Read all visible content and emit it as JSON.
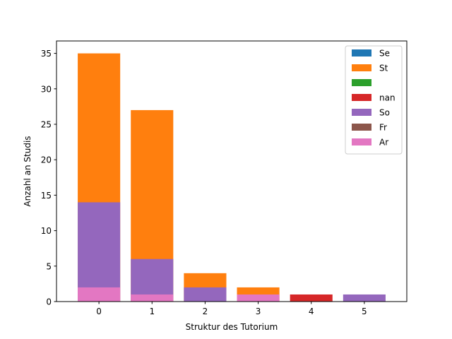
{
  "chart_data": {
    "type": "bar",
    "stacked": true,
    "categories": [
      "0",
      "1",
      "2",
      "3",
      "4",
      "5"
    ],
    "x": [
      0,
      1,
      2,
      3,
      4,
      5
    ],
    "xlabel": "Struktur des Tutorium",
    "ylabel": "Anzahl an Studis",
    "ylim": [
      0,
      36.75
    ],
    "yticks": [
      0,
      5,
      10,
      15,
      20,
      25,
      30,
      35
    ],
    "grid": false,
    "legend_position": "upper right",
    "series": [
      {
        "name": "Se",
        "color": "#1f77b4",
        "top": [
          0,
          0,
          0,
          0,
          0,
          0
        ]
      },
      {
        "name": "St",
        "color": "#ff7f0e",
        "top": [
          35,
          27,
          4,
          2,
          0,
          0
        ]
      },
      {
        "name": "",
        "color": "#2ca02c",
        "top": [
          0,
          0,
          0,
          0,
          0,
          0
        ]
      },
      {
        "name": "nan",
        "color": "#d62728",
        "top": [
          0,
          0,
          0,
          0,
          1,
          0
        ]
      },
      {
        "name": "So",
        "color": "#9467bd",
        "top": [
          14,
          6,
          2,
          0,
          0,
          1
        ]
      },
      {
        "name": "Fr",
        "color": "#8c564b",
        "top": [
          0,
          0,
          0,
          0,
          0,
          0
        ]
      },
      {
        "name": "Ar",
        "color": "#e377c2",
        "top": [
          2,
          1,
          0,
          1,
          0,
          0
        ]
      }
    ]
  }
}
